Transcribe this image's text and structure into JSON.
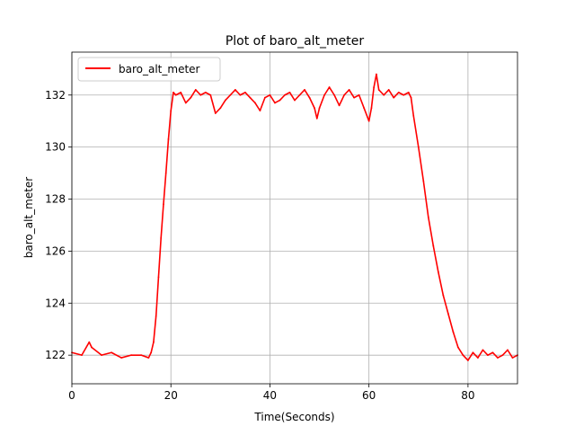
{
  "chart_data": {
    "type": "line",
    "title": "Plot of baro_alt_meter",
    "xlabel": "Time(Seconds)",
    "ylabel": "baro_alt_meter",
    "xlim": [
      0,
      90
    ],
    "ylim": [
      120.9,
      133.65
    ],
    "xticks": [
      0,
      20,
      40,
      60,
      80
    ],
    "xtick_labels": [
      "0",
      "20",
      "40",
      "60",
      "80"
    ],
    "yticks": [
      122,
      124,
      126,
      128,
      130,
      132
    ],
    "ytick_labels": [
      "122",
      "124",
      "126",
      "128",
      "130",
      "132"
    ],
    "grid": true,
    "legend": {
      "placement": "top-left",
      "entries": [
        "baro_alt_meter"
      ]
    },
    "series": [
      {
        "name": "baro_alt_meter",
        "color": "#ff0000",
        "x": [
          0,
          2,
          3.5,
          4,
          6,
          8,
          10,
          12,
          14,
          15.5,
          16,
          16.5,
          17,
          17.5,
          18,
          18.5,
          19,
          19.5,
          20,
          20.5,
          21,
          22,
          23,
          24,
          25,
          26,
          27,
          28,
          29,
          30,
          31,
          32,
          33,
          34,
          35,
          36,
          37,
          38,
          39,
          40,
          41,
          42,
          43,
          44,
          45,
          46,
          47,
          48,
          49,
          49.5,
          50,
          51,
          52,
          53,
          54,
          55,
          56,
          57,
          58,
          59,
          60,
          60.5,
          61,
          61.5,
          62,
          63,
          64,
          65,
          66,
          67,
          68,
          68.5,
          69,
          70,
          71,
          72,
          73,
          74,
          75,
          76,
          77,
          78,
          79,
          80,
          81,
          82,
          83,
          84,
          85,
          86,
          87,
          88,
          89,
          90
        ],
        "y": [
          122.1,
          122.0,
          122.5,
          122.3,
          122.0,
          122.1,
          121.9,
          122.0,
          122.0,
          121.9,
          122.1,
          122.5,
          123.5,
          125.0,
          126.5,
          127.8,
          129.0,
          130.3,
          131.4,
          132.1,
          132.0,
          132.1,
          131.7,
          131.9,
          132.2,
          132.0,
          132.1,
          132.0,
          131.3,
          131.5,
          131.8,
          132.0,
          132.2,
          132.0,
          132.1,
          131.9,
          131.7,
          131.4,
          131.9,
          132.0,
          131.7,
          131.8,
          132.0,
          132.1,
          131.8,
          132.0,
          132.2,
          131.9,
          131.5,
          131.1,
          131.5,
          132.0,
          132.3,
          132.0,
          131.6,
          132.0,
          132.2,
          131.9,
          132.0,
          131.5,
          131.0,
          131.5,
          132.3,
          132.8,
          132.2,
          132.0,
          132.2,
          131.9,
          132.1,
          132.0,
          132.1,
          131.9,
          131.2,
          130.0,
          128.7,
          127.3,
          126.2,
          125.2,
          124.3,
          123.6,
          122.9,
          122.3,
          122.0,
          121.8,
          122.1,
          121.9,
          122.2,
          122.0,
          122.1,
          121.9,
          122.0,
          122.2,
          121.9,
          122.0
        ]
      }
    ]
  }
}
